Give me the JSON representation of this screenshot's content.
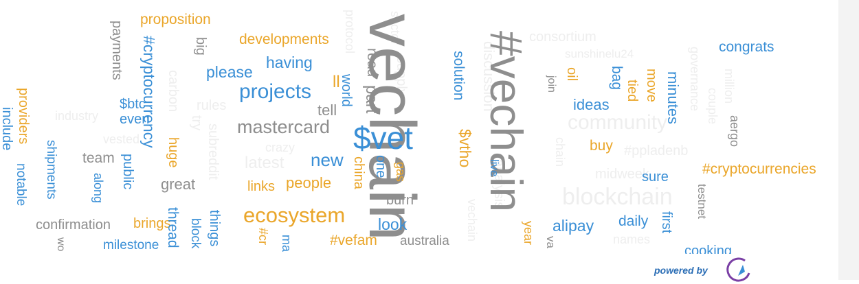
{
  "colors": {
    "blue": "#3a8fd6",
    "gray": "#8e8e8e",
    "orange": "#eaa62a",
    "faint": "#eeeeee",
    "credit": "#2a6db5"
  },
  "credit": {
    "text": "powered by"
  },
  "logo": {
    "icon": "wordcloud-logo-icon"
  },
  "words": [
    {
      "t": "vechain",
      "c": "gray"
    },
    {
      "t": "#vechain",
      "c": "gray"
    },
    {
      "t": "$vet",
      "c": "blue"
    },
    {
      "t": "ecosystem",
      "c": "orange"
    },
    {
      "t": "mastercard",
      "c": "gray"
    },
    {
      "t": "projects",
      "c": "blue"
    },
    {
      "t": "#cryptocurrency",
      "c": "blue"
    },
    {
      "t": "#cryptocurrencies",
      "c": "orange"
    },
    {
      "t": "proposition",
      "c": "orange"
    },
    {
      "t": "developments",
      "c": "orange"
    },
    {
      "t": "having",
      "c": "blue"
    },
    {
      "t": "please",
      "c": "blue"
    },
    {
      "t": "payments",
      "c": "gray"
    },
    {
      "t": "big",
      "c": "gray"
    },
    {
      "t": "ll",
      "c": "orange"
    },
    {
      "t": "tell",
      "c": "gray"
    },
    {
      "t": "world",
      "c": "blue"
    },
    {
      "t": "read",
      "c": "gray"
    },
    {
      "t": "part",
      "c": "gray"
    },
    {
      "t": "solution",
      "c": "blue"
    },
    {
      "t": "$vtho",
      "c": "orange"
    },
    {
      "t": "congrats",
      "c": "blue"
    },
    {
      "t": "oil",
      "c": "orange"
    },
    {
      "t": "bag",
      "c": "blue"
    },
    {
      "t": "tied",
      "c": "orange"
    },
    {
      "t": "move",
      "c": "orange"
    },
    {
      "t": "minutes",
      "c": "blue"
    },
    {
      "t": "join",
      "c": "gray"
    },
    {
      "t": "ideas",
      "c": "blue"
    },
    {
      "t": "buy",
      "c": "orange"
    },
    {
      "t": "aergo",
      "c": "gray"
    },
    {
      "t": "providers",
      "c": "orange"
    },
    {
      "t": "include",
      "c": "blue"
    },
    {
      "t": "$btc",
      "c": "blue"
    },
    {
      "t": "even",
      "c": "blue"
    },
    {
      "t": "team",
      "c": "gray"
    },
    {
      "t": "shipments",
      "c": "blue"
    },
    {
      "t": "notable",
      "c": "blue"
    },
    {
      "t": "along",
      "c": "blue"
    },
    {
      "t": "public",
      "c": "blue"
    },
    {
      "t": "huge",
      "c": "orange"
    },
    {
      "t": "great",
      "c": "gray"
    },
    {
      "t": "new",
      "c": "blue"
    },
    {
      "t": "china",
      "c": "orange"
    },
    {
      "t": "one",
      "c": "blue"
    },
    {
      "t": "gas",
      "c": "orange"
    },
    {
      "t": "burn",
      "c": "gray"
    },
    {
      "t": "links",
      "c": "orange"
    },
    {
      "t": "people",
      "c": "orange"
    },
    {
      "t": "live",
      "c": "blue"
    },
    {
      "t": "sure",
      "c": "blue"
    },
    {
      "t": "testnet",
      "c": "gray"
    },
    {
      "t": "confirmation",
      "c": "gray"
    },
    {
      "t": "brings",
      "c": "orange"
    },
    {
      "t": "thread",
      "c": "blue"
    },
    {
      "t": "block",
      "c": "blue"
    },
    {
      "t": "things",
      "c": "blue"
    },
    {
      "t": "look",
      "c": "blue"
    },
    {
      "t": "alipay",
      "c": "blue"
    },
    {
      "t": "daily",
      "c": "blue"
    },
    {
      "t": "first",
      "c": "blue"
    },
    {
      "t": "year",
      "c": "orange"
    },
    {
      "t": "va",
      "c": "gray"
    },
    {
      "t": "milestone",
      "c": "blue"
    },
    {
      "t": "#vefam",
      "c": "orange"
    },
    {
      "t": "australia",
      "c": "gray"
    },
    {
      "t": "#cr",
      "c": "orange"
    },
    {
      "t": "ma",
      "c": "blue"
    },
    {
      "t": "wo",
      "c": "gray"
    },
    {
      "t": "cooking",
      "c": "blue"
    },
    {
      "t": "consortium",
      "c": "faint"
    },
    {
      "t": "sunshinelu24",
      "c": "faint"
    },
    {
      "t": "community",
      "c": "faint"
    },
    {
      "t": "blockchain",
      "c": "faint"
    },
    {
      "t": "discussion",
      "c": "faint"
    },
    {
      "t": "analysis",
      "c": "faint"
    },
    {
      "t": "supply",
      "c": "faint"
    },
    {
      "t": "sector",
      "c": "faint"
    },
    {
      "t": "protocol",
      "c": "faint"
    },
    {
      "t": "industry",
      "c": "faint"
    },
    {
      "t": "vested",
      "c": "faint"
    },
    {
      "t": "carbon",
      "c": "faint"
    },
    {
      "t": "rules",
      "c": "faint"
    },
    {
      "t": "try",
      "c": "faint"
    },
    {
      "t": "subreddit",
      "c": "faint"
    },
    {
      "t": "crazy",
      "c": "faint"
    },
    {
      "t": "latest",
      "c": "faint"
    },
    {
      "t": "governance",
      "c": "faint"
    },
    {
      "t": "couple",
      "c": "faint"
    },
    {
      "t": "million",
      "c": "faint"
    },
    {
      "t": "#ppladenb",
      "c": "faint"
    },
    {
      "t": "midweek",
      "c": "faint"
    },
    {
      "t": "chain",
      "c": "faint"
    },
    {
      "t": "names",
      "c": "faint"
    },
    {
      "t": "vechain",
      "c": "faint"
    }
  ]
}
